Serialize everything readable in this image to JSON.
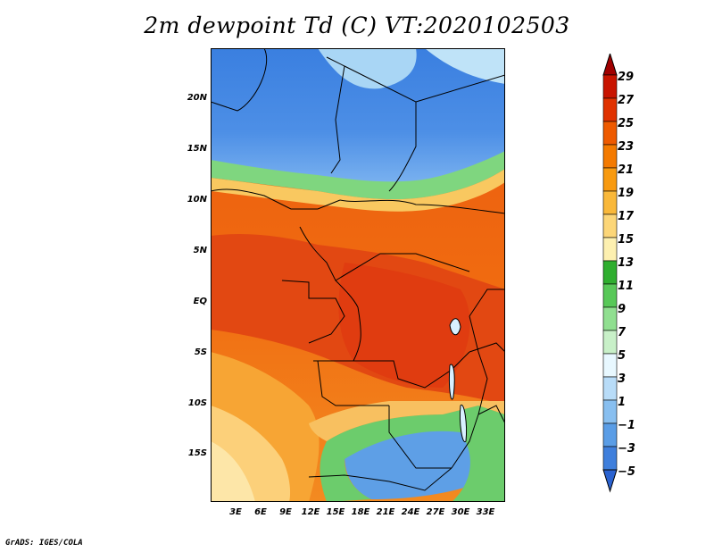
{
  "title": "2m dewpoint Td (C) VT:2020102503",
  "footer": "GrADS: IGES/COLA",
  "lat_labels": [
    "20N",
    "15N",
    "10N",
    "5N",
    "EQ",
    "5S",
    "10S",
    "15S"
  ],
  "lon_labels": [
    "3E",
    "6E",
    "9E",
    "12E",
    "15E",
    "18E",
    "21E",
    "24E",
    "27E",
    "30E",
    "33E"
  ],
  "colorbar": {
    "labels": [
      "29",
      "27",
      "25",
      "23",
      "21",
      "19",
      "17",
      "15",
      "13",
      "11",
      "9",
      "7",
      "5",
      "3",
      "1",
      "−1",
      "−3",
      "−5"
    ],
    "colors": [
      "#a00000",
      "#c81400",
      "#e03200",
      "#ee5a00",
      "#f47a00",
      "#f89a10",
      "#f9b83a",
      "#fcd678",
      "#fdf0b0",
      "#2fae2f",
      "#58c858",
      "#90df90",
      "#c8f0c8",
      "#e8f8ff",
      "#b8dcf8",
      "#88bff0",
      "#5a9de6",
      "#3f7fdc",
      "#2a62d0"
    ]
  }
}
